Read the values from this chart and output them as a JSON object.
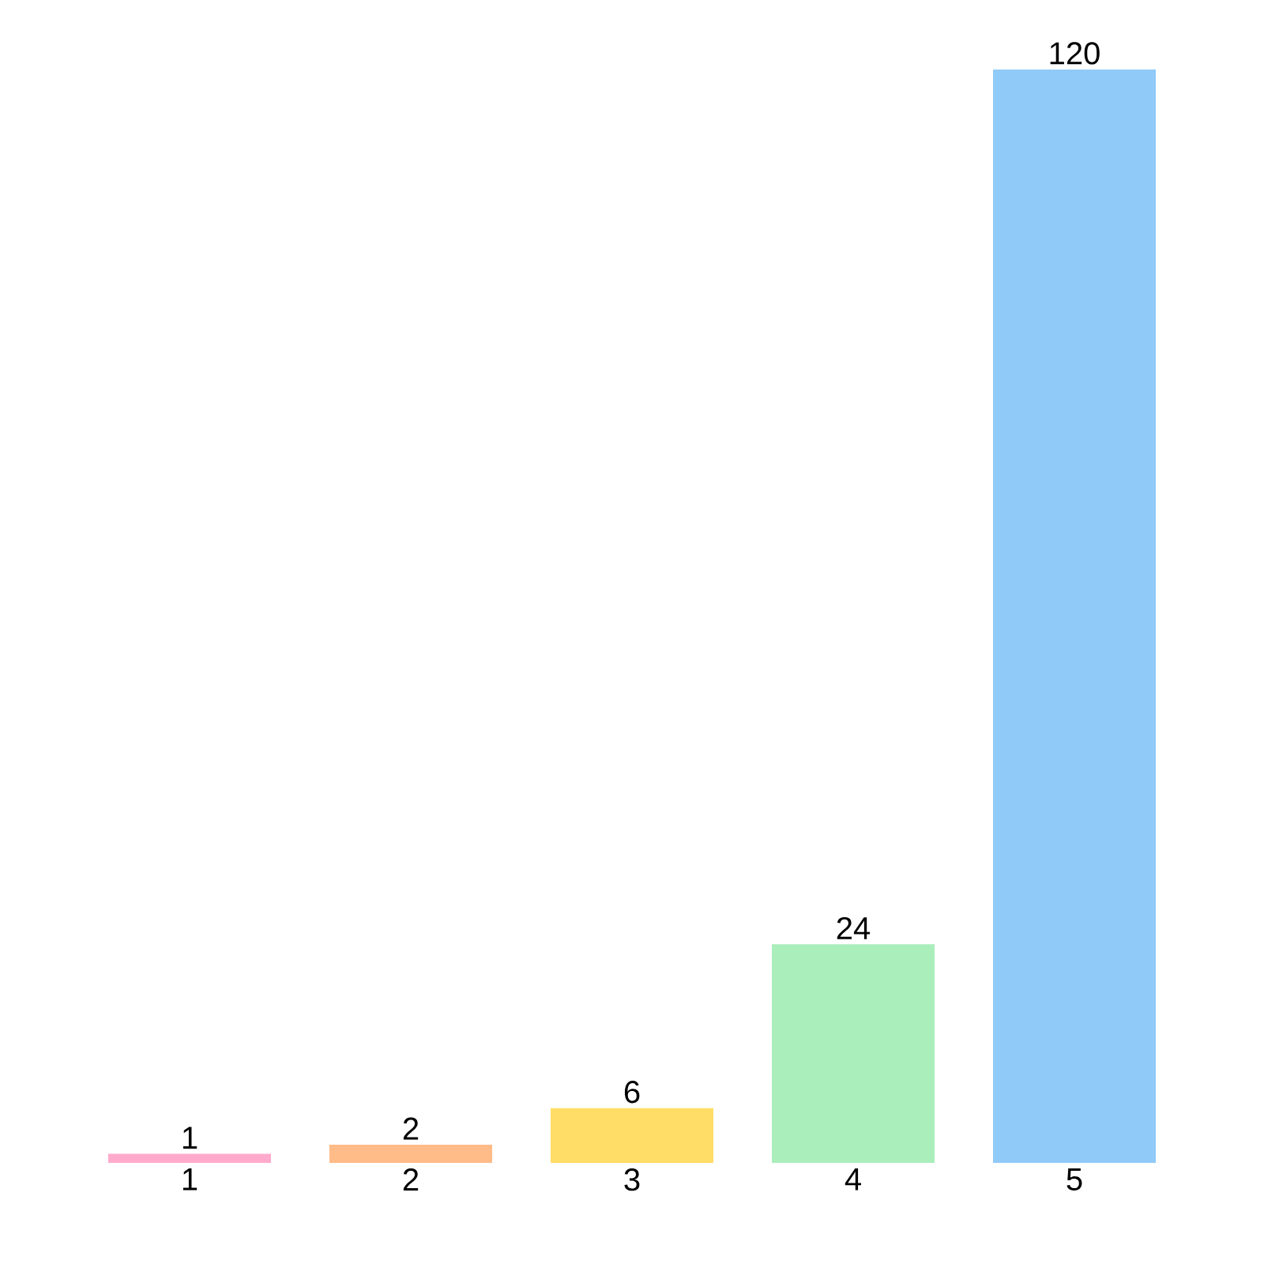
{
  "chart_data": {
    "type": "bar",
    "categories": [
      "1",
      "2",
      "3",
      "4",
      "5"
    ],
    "values": [
      1,
      2,
      6,
      24,
      120
    ],
    "colors": [
      "#ffaacc",
      "#ffbb88",
      "#ffdd66",
      "#aaeebb",
      "#90caf9"
    ],
    "data_labels": true
  }
}
